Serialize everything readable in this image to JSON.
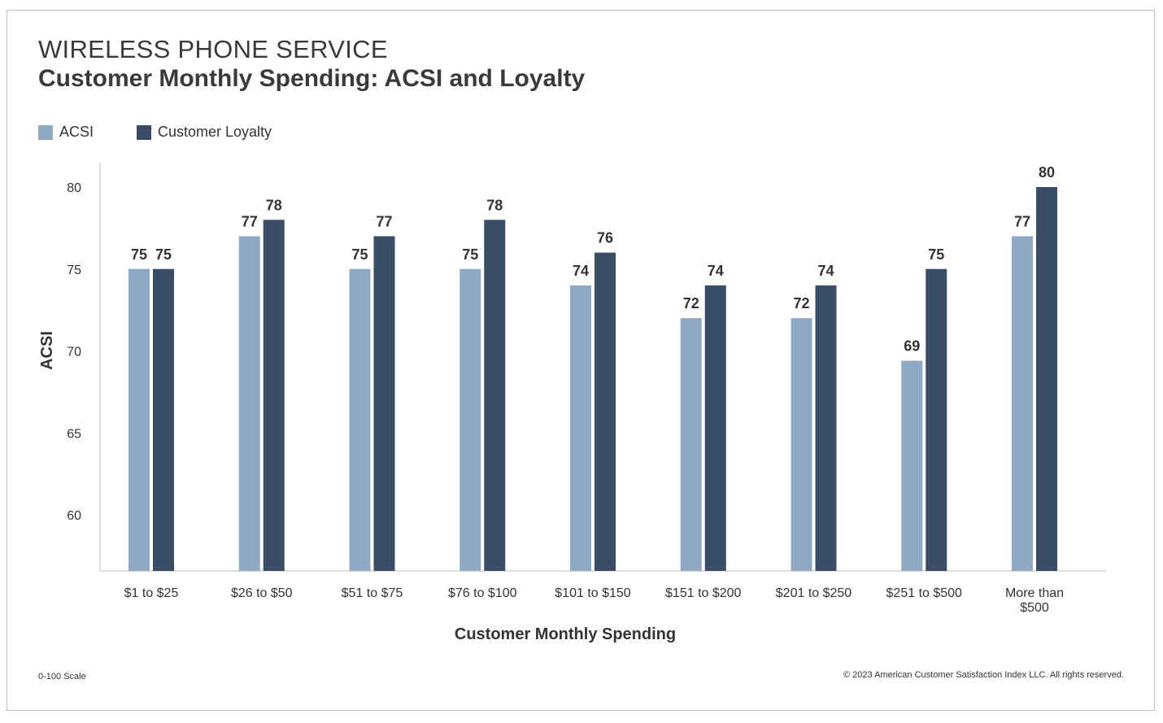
{
  "header": {
    "title": "WIRELESS PHONE SERVICE",
    "subtitle": "Customer Monthly Spending: ACSI and Loyalty"
  },
  "footer": {
    "scale_note": "0-100 Scale",
    "copyright": "© 2023 American Customer Satisfaction Index LLC. All rights reserved."
  },
  "colors": {
    "acsi": "#8fa8c3",
    "loyalty": "#3a4d66",
    "axis": "#bdbdbd"
  },
  "chart_data": {
    "type": "bar",
    "title": "Customer Monthly Spending: ACSI and Loyalty",
    "xlabel": "Customer Monthly Spending",
    "ylabel": "ACSI",
    "ylim": [
      56.5,
      81.3
    ],
    "yticks": [
      60,
      65,
      70,
      75,
      80
    ],
    "grid": false,
    "legend_position": "top-left",
    "categories": [
      [
        "$1 to $25"
      ],
      [
        "$26 to $50"
      ],
      [
        "$51 to $75"
      ],
      [
        "$76 to $100"
      ],
      [
        "$101 to $150"
      ],
      [
        "$151 to $200"
      ],
      [
        "$201 to $250"
      ],
      [
        "$251 to $500"
      ],
      [
        "More than",
        "$500"
      ]
    ],
    "series": [
      {
        "name": "ACSI",
        "values": [
          75,
          77,
          75,
          75,
          74,
          72,
          72,
          69.4,
          77
        ],
        "labels": [
          "75",
          "77",
          "75",
          "75",
          "74",
          "72",
          "72",
          "69",
          "77"
        ]
      },
      {
        "name": "Customer Loyalty",
        "values": [
          75,
          78,
          77,
          78,
          76,
          74,
          74,
          75,
          80
        ],
        "labels": [
          "75",
          "78",
          "77",
          "78",
          "76",
          "74",
          "74",
          "75",
          "80"
        ]
      }
    ]
  }
}
